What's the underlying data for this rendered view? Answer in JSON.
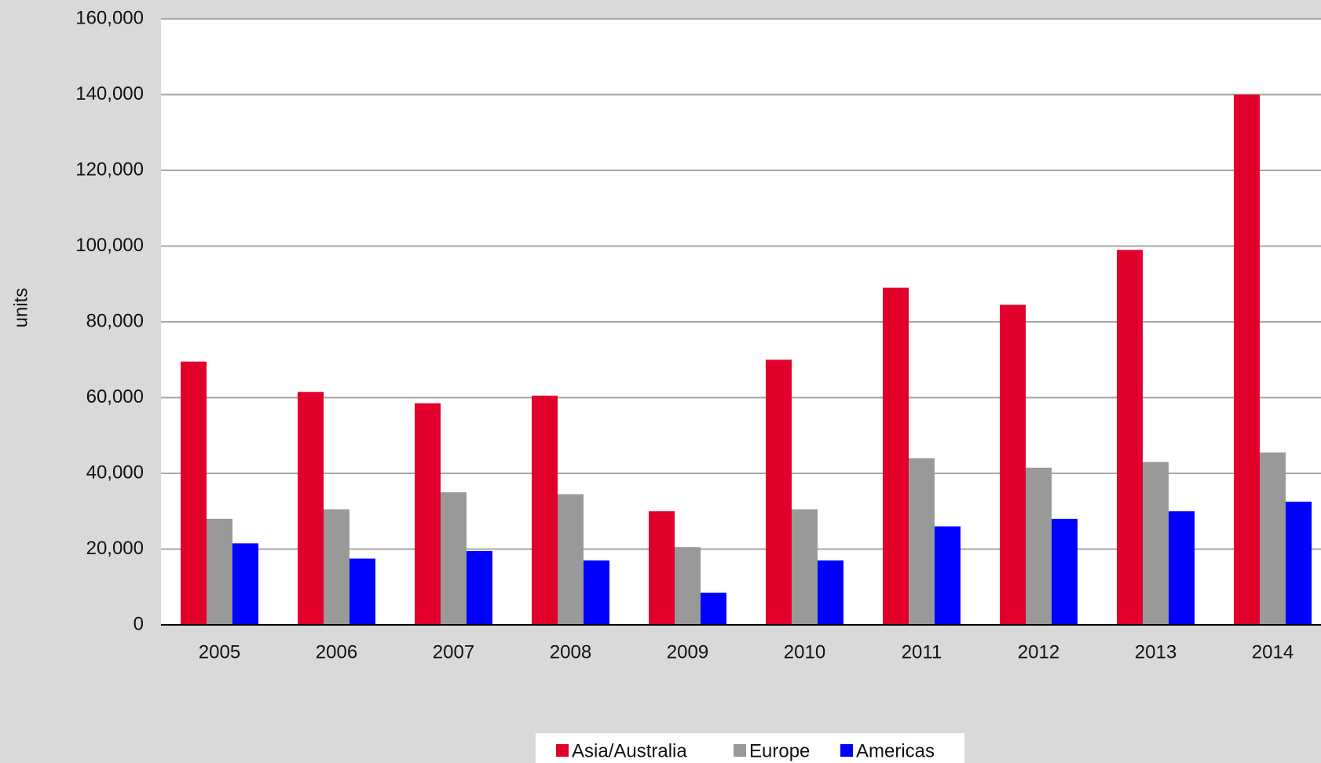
{
  "chart_data": {
    "type": "bar",
    "y_label": "units",
    "categories": [
      "2005",
      "2006",
      "2007",
      "2008",
      "2009",
      "2010",
      "2011",
      "2012",
      "2013",
      "2014"
    ],
    "series": [
      {
        "name": "Asia/Australia",
        "color": "#e0002a",
        "values": [
          69500,
          61500,
          58500,
          60500,
          30000,
          70000,
          89000,
          84500,
          99000,
          140000
        ]
      },
      {
        "name": "Europe",
        "color": "#999999",
        "values": [
          28000,
          30500,
          35000,
          34500,
          20500,
          30500,
          44000,
          41500,
          43000,
          45500
        ]
      },
      {
        "name": "Americas",
        "color": "#0000ff",
        "values": [
          21500,
          17500,
          19500,
          17000,
          8500,
          17000,
          26000,
          28000,
          30000,
          32500
        ]
      }
    ],
    "ylim": [
      0,
      160000
    ],
    "yticks": [
      0,
      {
        "value": 20000,
        "label": "20,000"
      },
      {
        "value": 40000,
        "label": "40,000"
      },
      {
        "value": 60000,
        "label": "60,000"
      },
      {
        "value": 80000,
        "label": "80,000"
      },
      {
        "value": 100000,
        "label": "100,000"
      },
      {
        "value": 120000,
        "label": "120,000"
      },
      {
        "value": 140000,
        "label": "140,000"
      },
      {
        "value": 160000,
        "label": "160,000"
      }
    ],
    "grid": true,
    "legend": "bottom"
  }
}
